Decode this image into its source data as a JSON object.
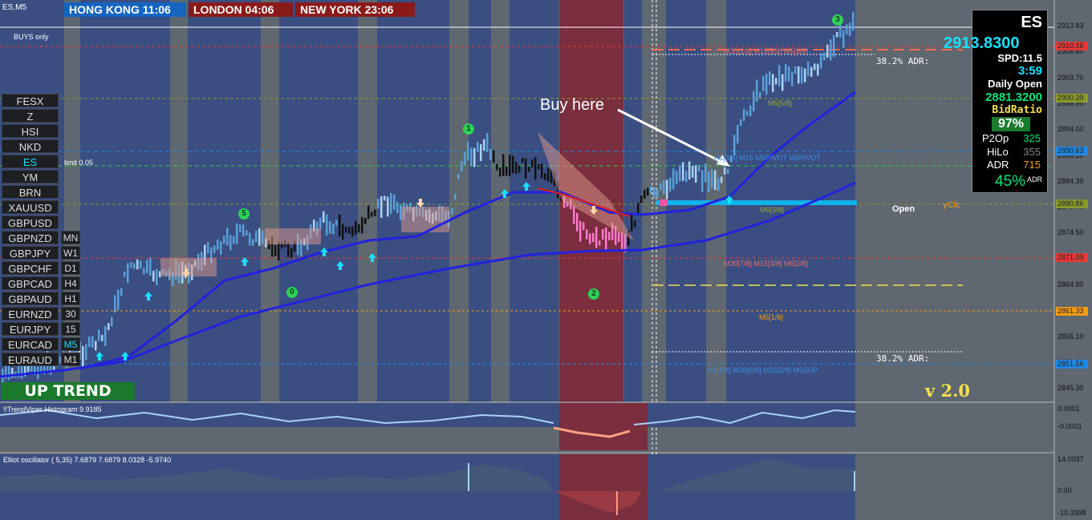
{
  "window": {
    "symbol_tf": "ES,M5",
    "mode": "BUYS only",
    "limit": "limit 0.05"
  },
  "clocks": [
    {
      "label": "HONG KONG 11:06",
      "color": "#1565c0"
    },
    {
      "label": "LONDON  04:06",
      "color": "#8b1a1a"
    },
    {
      "label": "NEW YORK  23:06",
      "color": "#8b1a1a"
    }
  ],
  "symbols": [
    "FESX",
    "Z",
    "HSI",
    "NKD",
    "ES",
    "YM",
    "BRN",
    "XAUUSD",
    "GBPUSD",
    "GBPNZD",
    "GBPJPY",
    "GBPCHF",
    "GBPCAD",
    "GBPAUD",
    "EURNZD",
    "EURJPY",
    "EURCAD",
    "EURAUD"
  ],
  "active_symbol": "ES",
  "timeframes": [
    "MN",
    "W1",
    "D1",
    "H4",
    "H1",
    "30",
    "15",
    "M5",
    "M1"
  ],
  "active_timeframe": "M5",
  "trend_label": "UP TREND",
  "annotation": "Buy here",
  "version": "v 2.0",
  "info_panel": {
    "symbol": "ES",
    "price": "2913.8300",
    "spread": "SPD:11.5",
    "timer": "3:59",
    "daily_open_label": "Daily Open",
    "daily_open": "2881.3200",
    "bid_ratio_label": "BidRatio",
    "bid_ratio": "97%",
    "p2op_label": "P2Op",
    "p2op": "325",
    "hilo_label": "HiLo",
    "hilo": "355",
    "adr_label": "ADR",
    "adr": "715",
    "adr_pct": "45%",
    "adr_pct_suffix": "ADR"
  },
  "price_axis": [
    "2913.83",
    "2908.60",
    "2903.70",
    "2898.90",
    "2894.00",
    "2889.10",
    "2884.30",
    "2879.40",
    "2874.50",
    "2869.70",
    "2864.80",
    "2859.90",
    "2855.10",
    "2850.20",
    "2845.30"
  ],
  "price_tags": [
    {
      "text": "2910.16",
      "color": "#e53935"
    },
    {
      "text": "2900.39",
      "color": "#8a9a2a"
    },
    {
      "text": "2890.63",
      "color": "#1e88e5"
    },
    {
      "text": "2880.86",
      "color": "#8a9a2a"
    },
    {
      "text": "2871.09",
      "color": "#e53935"
    },
    {
      "text": "2861.33",
      "color": "#f39c12"
    },
    {
      "text": "2851.56",
      "color": "#1e88e5"
    }
  ],
  "level_labels": {
    "top": "M30[1/8] M15[5/8] M5[6/8]",
    "m5_58": "M5[5/8]",
    "pivot": "H1[3/8] M15 M5PIVOT M5PIVOT",
    "m5_38": "M5[3/8]",
    "mid": "M30[7/8] M15[3/8] M5[2/8]",
    "m5_18": "M5[1/8]",
    "bottom": "H1[1/8] M30[6/8] M15[2/8] M5SUP",
    "adr1": "38.2% ADR:",
    "adr2": "38.2% ADR:",
    "open": "Open",
    "yclose": "yClс"
  },
  "markers": [
    "1",
    "2",
    "3",
    "5",
    "0"
  ],
  "histogram": {
    "title": "!!TrendViper Histogram 9.9185",
    "axis": [
      "0.0001",
      "-0.0001"
    ]
  },
  "oscillator": {
    "title": "Elliot oscillator ( 5,35) 7.6879 7.6879 8.0328 -5.9740",
    "axis": [
      "14.0037",
      "0.00",
      "-10.3398"
    ]
  },
  "colors": {
    "up_line": "#2222dd",
    "bid": "#00e676",
    "price": "#18e0ff",
    "session_red": "#7a2e3e",
    "session_blue": "#3a4e82"
  }
}
